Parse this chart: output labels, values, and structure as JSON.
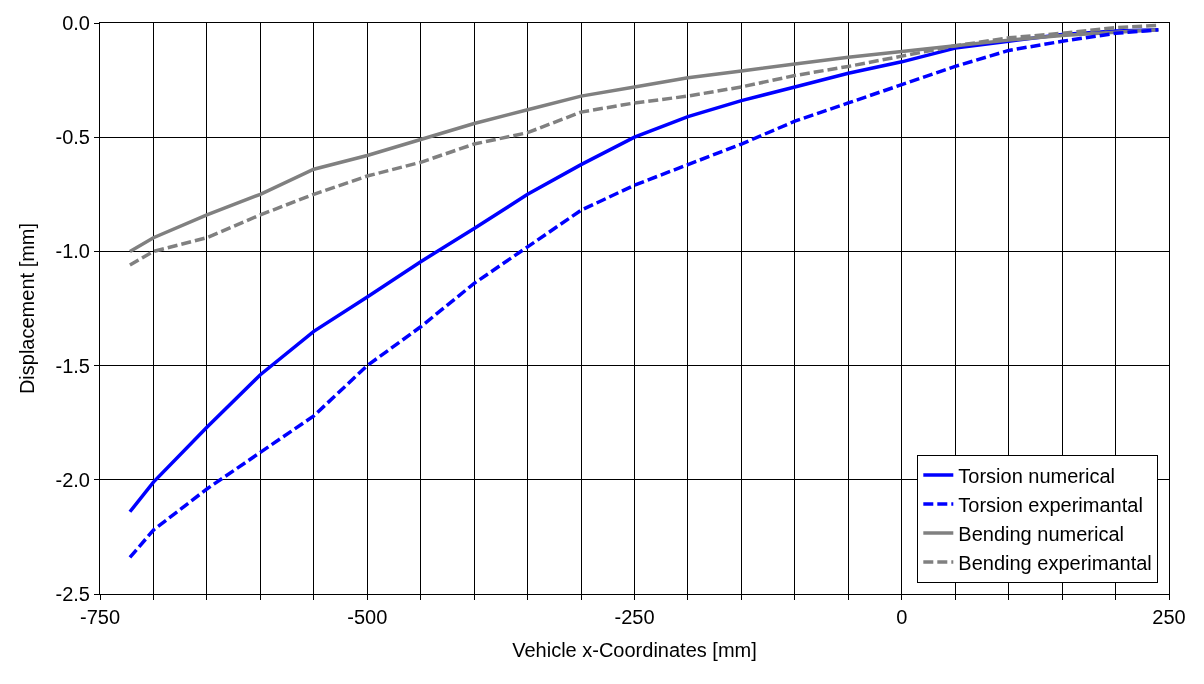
{
  "chart_data": {
    "type": "line",
    "xlabel": "Vehicle x-Coordinates [mm]",
    "ylabel": "Displacement [mm]",
    "xlim": [
      -750,
      250
    ],
    "ylim": [
      -2.5,
      0
    ],
    "xticks": [
      -750,
      {
        "value": -700,
        "label": null
      },
      {
        "value": -650,
        "label": null
      },
      {
        "value": -600,
        "label": null
      },
      {
        "value": -550,
        "label": null
      },
      -500,
      {
        "value": -450,
        "label": null
      },
      {
        "value": -400,
        "label": null
      },
      {
        "value": -350,
        "label": null
      },
      {
        "value": -300,
        "label": null
      },
      -250,
      {
        "value": -200,
        "label": null
      },
      {
        "value": -150,
        "label": null
      },
      {
        "value": -100,
        "label": null
      },
      {
        "value": -50,
        "label": null
      },
      0,
      {
        "value": 50,
        "label": null
      },
      {
        "value": 100,
        "label": null
      },
      {
        "value": 150,
        "label": null
      },
      {
        "value": 200,
        "label": null
      },
      250
    ],
    "yticks": [
      {
        "value": -2.5,
        "label": "-2.5"
      },
      {
        "value": -2,
        "label": "-2.0"
      },
      {
        "value": -1.5,
        "label": "-1.5"
      },
      {
        "value": -1,
        "label": "-1.0"
      },
      {
        "value": -0.5,
        "label": "-0.5"
      },
      {
        "value": 0,
        "label": "0.0"
      }
    ],
    "grid": true,
    "legend": "bottom right",
    "marker": "none",
    "x": [
      -722,
      -700,
      -650,
      -600,
      -550,
      -500,
      -450,
      -400,
      -350,
      -300,
      -250,
      -200,
      -150,
      -100,
      -50,
      0,
      50,
      100,
      150,
      200,
      240
    ],
    "series": [
      {
        "name": "Torsion numerical",
        "color": "#0000ff",
        "line_style": "solid",
        "values": [
          -2.14,
          -2.01,
          -1.77,
          -1.54,
          -1.35,
          -1.2,
          -1.045,
          -0.9,
          -0.75,
          -0.62,
          -0.5,
          -0.41,
          -0.34,
          -0.28,
          -0.22,
          -0.17,
          -0.11,
          -0.08,
          -0.05,
          -0.035,
          -0.03
        ]
      },
      {
        "name": "Torsion experimantal",
        "color": "#0000ff",
        "line_style": "dashed",
        "values": [
          -2.34,
          -2.22,
          -2.04,
          -1.88,
          -1.72,
          -1.5,
          -1.33,
          -1.14,
          -0.98,
          -0.82,
          -0.71,
          -0.62,
          -0.53,
          -0.43,
          -0.35,
          -0.27,
          -0.19,
          -0.12,
          -0.08,
          -0.045,
          -0.03
        ]
      },
      {
        "name": "Bending numerical",
        "color": "#808080",
        "line_style": "solid",
        "values": [
          -1.0,
          -0.94,
          -0.84,
          -0.75,
          -0.64,
          -0.58,
          -0.51,
          -0.44,
          -0.38,
          -0.32,
          -0.28,
          -0.24,
          -0.21,
          -0.18,
          -0.15,
          -0.125,
          -0.1,
          -0.075,
          -0.055,
          -0.04,
          -0.03
        ]
      },
      {
        "name": "Bending experimantal",
        "color": "#808080",
        "line_style": "dashed",
        "values": [
          -1.06,
          -1.0,
          -0.94,
          -0.84,
          -0.75,
          -0.67,
          -0.61,
          -0.53,
          -0.48,
          -0.39,
          -0.35,
          -0.32,
          -0.28,
          -0.23,
          -0.19,
          -0.145,
          -0.1,
          -0.065,
          -0.045,
          -0.02,
          -0.01
        ]
      }
    ]
  }
}
